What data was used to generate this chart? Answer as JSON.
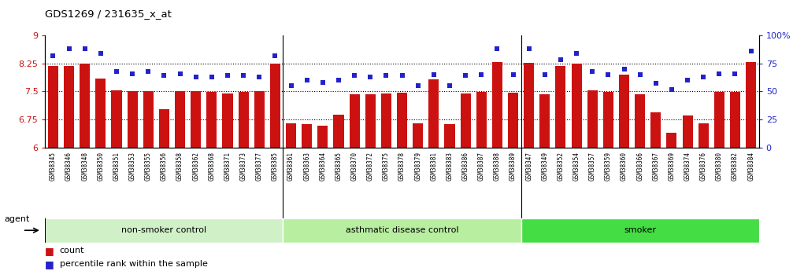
{
  "title": "GDS1269 / 231635_x_at",
  "categories": [
    "GSM38345",
    "GSM38346",
    "GSM38348",
    "GSM38350",
    "GSM38351",
    "GSM38353",
    "GSM38355",
    "GSM38356",
    "GSM38358",
    "GSM38362",
    "GSM38368",
    "GSM38371",
    "GSM38373",
    "GSM38377",
    "GSM38385",
    "GSM38361",
    "GSM38363",
    "GSM38364",
    "GSM38365",
    "GSM38370",
    "GSM38372",
    "GSM38375",
    "GSM38378",
    "GSM38379",
    "GSM38381",
    "GSM38383",
    "GSM38386",
    "GSM38387",
    "GSM38388",
    "GSM38389",
    "GSM38347",
    "GSM38349",
    "GSM38352",
    "GSM38354",
    "GSM38357",
    "GSM38359",
    "GSM38360",
    "GSM38366",
    "GSM38367",
    "GSM38369",
    "GSM38374",
    "GSM38376",
    "GSM38380",
    "GSM38382",
    "GSM38384"
  ],
  "bar_values": [
    8.18,
    8.19,
    8.25,
    7.85,
    7.52,
    7.5,
    7.5,
    7.02,
    7.5,
    7.5,
    7.48,
    7.45,
    7.48,
    7.5,
    8.25,
    6.65,
    6.62,
    6.58,
    6.88,
    7.43,
    7.42,
    7.45,
    7.47,
    6.65,
    7.82,
    6.62,
    7.45,
    7.48,
    8.28,
    7.47,
    8.26,
    7.42,
    8.18,
    8.25,
    7.52,
    7.48,
    7.95,
    7.42,
    6.95,
    6.4,
    6.85,
    6.65,
    7.48,
    7.48,
    8.28
  ],
  "percentile_values": [
    82,
    88,
    88,
    84,
    68,
    66,
    68,
    64,
    66,
    63,
    63,
    64,
    64,
    63,
    82,
    55,
    60,
    58,
    60,
    64,
    63,
    64,
    64,
    55,
    65,
    55,
    64,
    65,
    88,
    65,
    88,
    65,
    78,
    84,
    68,
    65,
    70,
    65,
    57,
    52,
    60,
    63,
    66,
    66,
    86
  ],
  "group_labels": [
    "non-smoker control",
    "asthmatic disease control",
    "smoker"
  ],
  "group_sizes": [
    15,
    15,
    15
  ],
  "group_bg_colors": [
    "#d8f5d0",
    "#c0f0b0",
    "#44dd44"
  ],
  "bar_color": "#cc1111",
  "dot_color": "#2222cc",
  "ylim_left": [
    6,
    9
  ],
  "ylim_right": [
    0,
    100
  ],
  "yticks_left": [
    6,
    6.75,
    7.5,
    8.25,
    9
  ],
  "ytick_labels_left": [
    "6",
    "6.75",
    "7.5",
    "8.25",
    "9"
  ],
  "ytick_labels_right": [
    "0",
    "25",
    "50",
    "75",
    "100%"
  ],
  "hlines": [
    6.75,
    7.5,
    8.25
  ],
  "legend_bar_label": "count",
  "legend_dot_label": "percentile rank within the sample",
  "agent_label": "agent",
  "xtick_bg_color": "#d8d8d8",
  "group_border_color": "#aaaaaa"
}
